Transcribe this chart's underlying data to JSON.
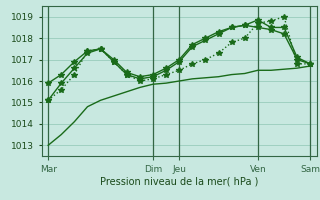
{
  "bg_color": "#c8e8e0",
  "grid_color": "#99ccbb",
  "line_color": "#1a6b1a",
  "title": "Pression niveau de la mer( hPa )",
  "ylim": [
    1012.5,
    1019.5
  ],
  "yticks": [
    1013,
    1014,
    1015,
    1016,
    1017,
    1018,
    1019
  ],
  "day_labels": [
    "Mar",
    "Dim",
    "Jeu",
    "Ven",
    "Sam"
  ],
  "day_positions": [
    0,
    8,
    10,
    16,
    20
  ],
  "series": [
    {
      "x": [
        0,
        1,
        2,
        3,
        4,
        5,
        6,
        7,
        8,
        9,
        10,
        11,
        12,
        13,
        14,
        15,
        16,
        17,
        18,
        19,
        20
      ],
      "y": [
        1013.0,
        1013.5,
        1014.1,
        1014.8,
        1015.1,
        1015.3,
        1015.5,
        1015.7,
        1015.85,
        1015.9,
        1016.0,
        1016.1,
        1016.15,
        1016.2,
        1016.3,
        1016.35,
        1016.5,
        1016.5,
        1016.55,
        1016.6,
        1016.7
      ],
      "style": "-",
      "marker": null,
      "lw": 1.0
    },
    {
      "x": [
        0,
        1,
        2,
        3,
        4,
        5,
        6,
        7,
        8,
        9,
        10,
        11,
        12,
        13,
        14,
        15,
        16,
        17,
        18,
        19,
        20
      ],
      "y": [
        1015.1,
        1015.6,
        1016.3,
        1017.4,
        1017.5,
        1016.9,
        1016.3,
        1016.0,
        1016.1,
        1016.3,
        1016.5,
        1016.8,
        1017.0,
        1017.3,
        1017.8,
        1018.0,
        1018.7,
        1018.8,
        1019.0,
        1016.8,
        1016.8
      ],
      "style": ":",
      "marker": "*",
      "markersize": 4,
      "lw": 1.0
    },
    {
      "x": [
        0,
        1,
        2,
        3,
        4,
        5,
        6,
        7,
        8,
        9,
        10,
        11,
        12,
        13,
        14,
        15,
        16,
        17,
        18,
        19,
        20
      ],
      "y": [
        1015.9,
        1016.3,
        1016.9,
        1017.4,
        1017.5,
        1016.9,
        1016.3,
        1016.1,
        1016.2,
        1016.5,
        1016.9,
        1017.6,
        1017.9,
        1018.2,
        1018.5,
        1018.6,
        1018.85,
        1018.5,
        1018.5,
        1017.1,
        1016.8
      ],
      "style": "-",
      "marker": "*",
      "markersize": 4,
      "lw": 1.0
    },
    {
      "x": [
        0,
        1,
        2,
        3,
        4,
        5,
        6,
        7,
        8,
        9,
        10,
        11,
        12,
        13,
        14,
        15,
        16,
        17,
        18,
        19,
        20
      ],
      "y": [
        1015.1,
        1015.9,
        1016.6,
        1017.3,
        1017.5,
        1017.0,
        1016.4,
        1016.2,
        1016.3,
        1016.6,
        1017.0,
        1017.7,
        1018.0,
        1018.3,
        1018.5,
        1018.6,
        1018.5,
        1018.4,
        1018.2,
        1017.0,
        1016.8
      ],
      "style": "-",
      "marker": "*",
      "markersize": 4,
      "lw": 1.0
    }
  ]
}
